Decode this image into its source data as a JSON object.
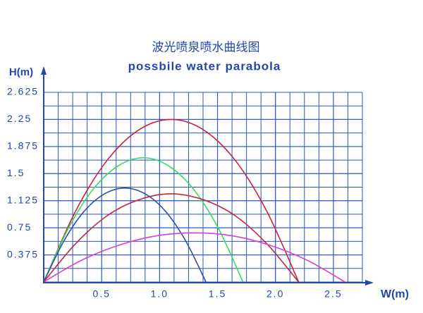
{
  "chart_data": {
    "type": "line",
    "title": "波光喷泉喷水曲线图",
    "subtitle": "possbile water parabola",
    "y_label": "H(m)",
    "x_label": "W(m)",
    "xlim": [
      0,
      2.75
    ],
    "ylim": [
      0,
      2.625
    ],
    "xticks": [
      0.5,
      {
        "value": 1,
        "label": "1.0"
      },
      1.5,
      {
        "value": 2,
        "label": "2.0"
      },
      2.5
    ],
    "yticks": [
      0.375,
      0.75,
      1.125,
      1.5,
      1.875,
      2.25,
      2.625
    ],
    "grid": true,
    "series": [
      {
        "color": "#cc2238",
        "x": [
          0,
          0.275,
          0.55,
          0.825,
          1.1,
          1.375,
          1.65,
          1.925,
          2.2
        ],
        "values": [
          0,
          0.98,
          1.69,
          2.11,
          2.25,
          2.11,
          1.69,
          0.98,
          0
        ]
      },
      {
        "color": "#33dd55",
        "x": [
          0,
          0.215,
          0.43,
          0.645,
          0.86,
          1.075,
          1.29,
          1.505,
          1.72
        ],
        "values": [
          0,
          0.75,
          1.29,
          1.61,
          1.72,
          1.61,
          1.29,
          0.75,
          0
        ]
      },
      {
        "color": "#2f4fb0",
        "x": [
          0,
          0.175,
          0.35,
          0.525,
          0.7,
          0.875,
          1.05,
          1.225,
          1.4
        ],
        "values": [
          0,
          0.57,
          0.98,
          1.22,
          1.3,
          1.22,
          0.98,
          0.57,
          0
        ]
      },
      {
        "color": "#bf2a3a",
        "x": [
          0,
          0.275,
          0.55,
          0.825,
          1.1,
          1.375,
          1.65,
          1.925,
          2.2
        ],
        "values": [
          0,
          0.53,
          0.92,
          1.14,
          1.22,
          1.14,
          0.92,
          0.53,
          0
        ]
      },
      {
        "color": "#dd3fd0",
        "x": [
          0,
          0.325,
          0.65,
          0.975,
          1.3,
          1.625,
          1.95,
          2.275,
          2.6
        ],
        "values": [
          0,
          0.3,
          0.51,
          0.64,
          0.68,
          0.64,
          0.51,
          0.3,
          0
        ]
      }
    ]
  }
}
